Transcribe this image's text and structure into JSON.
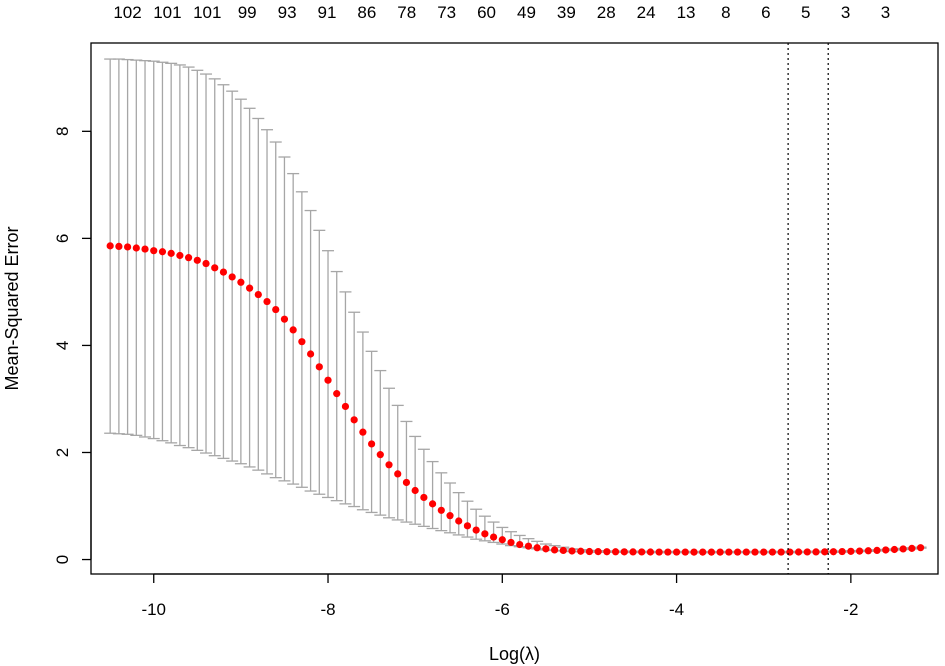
{
  "chart_data": {
    "type": "scatter",
    "xlabel": "Log(λ)",
    "ylabel": "Mean-Squared Error",
    "xlim": [
      -10.72,
      -1.0
    ],
    "ylim": [
      -0.27,
      9.65
    ],
    "x_ticks": [
      -10,
      -8,
      -6,
      -4,
      -2
    ],
    "y_ticks": [
      0,
      2,
      4,
      6,
      8
    ],
    "top_axis_labels": [
      "102",
      "101",
      "101",
      "99",
      "93",
      "91",
      "86",
      "78",
      "73",
      "60",
      "49",
      "39",
      "28",
      "24",
      "13",
      "8",
      "6",
      "5",
      "3",
      "3"
    ],
    "lambda_min_log": -2.72,
    "lambda_1se_log": -2.26,
    "point_color": "#ff0000",
    "errorbar_color": "#a6a6a6",
    "vline_style": "dotted",
    "grid": false,
    "series": [
      {
        "x": [
          -10.5,
          -10.4,
          -10.3,
          -10.2,
          -10.1,
          -10.0,
          -9.9,
          -9.8,
          -9.7,
          -9.6,
          -9.5,
          -9.4,
          -9.3,
          -9.2,
          -9.1,
          -9.0,
          -8.9,
          -8.8,
          -8.7,
          -8.6,
          -8.5,
          -8.4,
          -8.3,
          -8.2,
          -8.1,
          -8.0,
          -7.9,
          -7.8,
          -7.7,
          -7.6,
          -7.5,
          -7.4,
          -7.3,
          -7.2,
          -7.1,
          -7.0,
          -6.9,
          -6.8,
          -6.7,
          -6.6,
          -6.5,
          -6.4,
          -6.3,
          -6.2,
          -6.1,
          -6.0,
          -5.9,
          -5.8,
          -5.7,
          -5.6,
          -5.5,
          -5.4,
          -5.3,
          -5.2,
          -5.1,
          -5.0,
          -4.9,
          -4.8,
          -4.7,
          -4.6,
          -4.5,
          -4.4,
          -4.3,
          -4.2,
          -4.1,
          -4.0,
          -3.9,
          -3.8,
          -3.7,
          -3.6,
          -3.5,
          -3.4,
          -3.3,
          -3.2,
          -3.1,
          -3.0,
          -2.9,
          -2.8,
          -2.7,
          -2.6,
          -2.5,
          -2.4,
          -2.3,
          -2.2,
          -2.1,
          -2.0,
          -1.9,
          -1.8,
          -1.7,
          -1.6,
          -1.5,
          -1.4,
          -1.3,
          -1.2
        ],
        "y": [
          5.86,
          5.85,
          5.84,
          5.82,
          5.8,
          5.77,
          5.75,
          5.72,
          5.68,
          5.64,
          5.59,
          5.53,
          5.45,
          5.37,
          5.28,
          5.18,
          5.07,
          4.95,
          4.82,
          4.67,
          4.49,
          4.29,
          4.07,
          3.84,
          3.6,
          3.35,
          3.1,
          2.86,
          2.61,
          2.38,
          2.16,
          1.96,
          1.77,
          1.6,
          1.44,
          1.29,
          1.16,
          1.04,
          0.92,
          0.82,
          0.72,
          0.63,
          0.55,
          0.48,
          0.42,
          0.37,
          0.32,
          0.28,
          0.25,
          0.22,
          0.2,
          0.18,
          0.17,
          0.16,
          0.155,
          0.15,
          0.148,
          0.146,
          0.145,
          0.144,
          0.143,
          0.142,
          0.141,
          0.14,
          0.14,
          0.14,
          0.14,
          0.139,
          0.139,
          0.139,
          0.139,
          0.14,
          0.14,
          0.14,
          0.14,
          0.14,
          0.14,
          0.14,
          0.14,
          0.141,
          0.142,
          0.143,
          0.144,
          0.146,
          0.149,
          0.153,
          0.158,
          0.164,
          0.171,
          0.179,
          0.188,
          0.198,
          0.209,
          0.222
        ],
        "ymin": [
          2.36,
          2.35,
          2.34,
          2.32,
          2.29,
          2.26,
          2.22,
          2.18,
          2.13,
          2.09,
          2.04,
          1.99,
          1.94,
          1.89,
          1.84,
          1.79,
          1.73,
          1.67,
          1.6,
          1.53,
          1.47,
          1.41,
          1.35,
          1.28,
          1.22,
          1.16,
          1.1,
          1.04,
          0.99,
          0.93,
          0.88,
          0.83,
          0.78,
          0.74,
          0.7,
          0.66,
          0.62,
          0.58,
          0.54,
          0.5,
          0.46,
          0.42,
          0.38,
          0.35,
          0.32,
          0.29,
          0.26,
          0.24,
          0.22,
          0.2,
          0.18,
          0.17,
          0.16,
          0.15,
          0.145,
          0.14,
          0.138,
          0.136,
          0.135,
          0.134,
          0.133,
          0.132,
          0.131,
          0.13,
          0.13,
          0.13,
          0.13,
          0.129,
          0.129,
          0.129,
          0.129,
          0.13,
          0.13,
          0.13,
          0.13,
          0.13,
          0.13,
          0.13,
          0.13,
          0.131,
          0.132,
          0.133,
          0.134,
          0.136,
          0.139,
          0.143,
          0.148,
          0.154,
          0.161,
          0.169,
          0.178,
          0.188,
          0.199,
          0.212
        ],
        "ymax": [
          9.35,
          9.35,
          9.34,
          9.33,
          9.32,
          9.31,
          9.29,
          9.27,
          9.24,
          9.2,
          9.14,
          9.07,
          8.98,
          8.87,
          8.75,
          8.6,
          8.43,
          8.24,
          8.03,
          7.8,
          7.52,
          7.21,
          6.87,
          6.52,
          6.15,
          5.77,
          5.38,
          5.0,
          4.62,
          4.25,
          3.89,
          3.53,
          3.2,
          2.88,
          2.58,
          2.3,
          2.06,
          1.83,
          1.62,
          1.43,
          1.25,
          1.09,
          0.94,
          0.81,
          0.7,
          0.6,
          0.52,
          0.45,
          0.39,
          0.34,
          0.29,
          0.26,
          0.23,
          0.2,
          0.185,
          0.17,
          0.165,
          0.16,
          0.158,
          0.156,
          0.154,
          0.152,
          0.151,
          0.15,
          0.15,
          0.15,
          0.15,
          0.149,
          0.149,
          0.149,
          0.149,
          0.15,
          0.15,
          0.15,
          0.15,
          0.15,
          0.15,
          0.15,
          0.15,
          0.151,
          0.152,
          0.153,
          0.154,
          0.156,
          0.159,
          0.163,
          0.168,
          0.174,
          0.181,
          0.189,
          0.198,
          0.208,
          0.219,
          0.232
        ]
      }
    ]
  }
}
